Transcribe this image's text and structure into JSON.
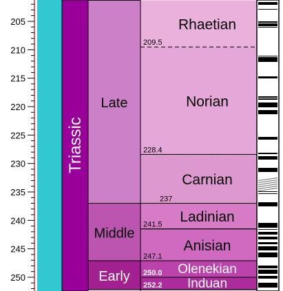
{
  "axis": {
    "ticks": [
      "205",
      "210",
      "215",
      "220",
      "225",
      "230",
      "235",
      "240",
      "245",
      "250"
    ]
  },
  "period": {
    "label": "Triassic",
    "color": "#990099"
  },
  "epochs": [
    {
      "label": "Late",
      "top_ma": 201.3,
      "bottom_ma": 237.0,
      "color": "#cc80c8"
    },
    {
      "label": "Middle",
      "top_ma": 237.0,
      "bottom_ma": 247.1,
      "color": "#bb55b0"
    },
    {
      "label": "Early",
      "top_ma": 247.1,
      "bottom_ma": 252.2,
      "color": "#a2208f"
    }
  ],
  "stages": [
    {
      "label": "Rhaetian",
      "top_ma": 201.3,
      "bottom_ma": 209.5,
      "color": "#eab1dc",
      "boundary_label": "209.5",
      "dashed": true
    },
    {
      "label": "Norian",
      "top_ma": 209.5,
      "bottom_ma": 228.4,
      "color": "#e4a7d7",
      "boundary_label": "228.4",
      "dashed": true
    },
    {
      "label": "Carnian",
      "top_ma": 228.4,
      "bottom_ma": 237.0,
      "color": "#dd99cf",
      "boundary_label": "237",
      "dashed": false
    },
    {
      "label": "Ladinian",
      "top_ma": 237.0,
      "bottom_ma": 241.5,
      "color": "#d77bc7",
      "boundary_label": "241.5",
      "dashed": false
    },
    {
      "label": "Anisian",
      "top_ma": 241.5,
      "bottom_ma": 247.1,
      "color": "#cf6ac0",
      "boundary_label": "247.1",
      "dashed": false
    },
    {
      "label": "Olenekian",
      "top_ma": 247.1,
      "bottom_ma": 250.0,
      "color": "#bd43ac",
      "boundary_label": "250.0",
      "dashed": false
    },
    {
      "label": "Induan",
      "top_ma": 250.0,
      "bottom_ma": 252.2,
      "color": "#ac2c9c",
      "boundary_label": "252.2",
      "dashed": false
    }
  ],
  "colors": {
    "era_strip": "#32c8d2",
    "axis": "#cc3333"
  }
}
